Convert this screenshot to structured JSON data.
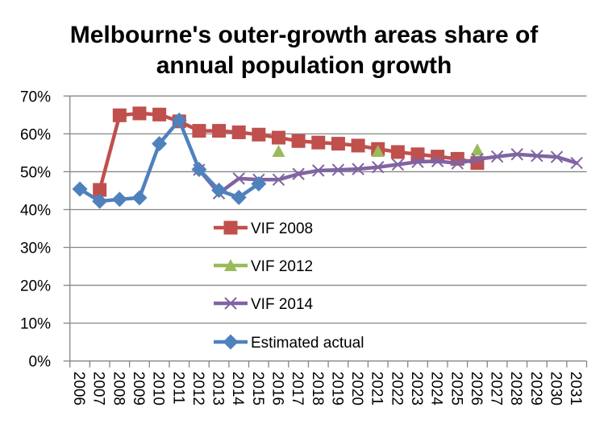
{
  "chart_data": {
    "type": "line",
    "title": "Melbourne's outer-growth areas share of annual population growth",
    "title_lines": [
      "Melbourne's outer-growth areas share of",
      "annual population growth"
    ],
    "xlabel": "",
    "ylabel": "",
    "categories": [
      "2006",
      "2007",
      "2008",
      "2009",
      "2010",
      "2011",
      "2012",
      "2013",
      "2014",
      "2015",
      "2016",
      "2017",
      "2018",
      "2019",
      "2020",
      "2021",
      "2022",
      "2023",
      "2024",
      "2025",
      "2026",
      "2027",
      "2028",
      "2029",
      "2030",
      "2031"
    ],
    "ylim": [
      0,
      70
    ],
    "yticks": [
      0,
      10,
      20,
      30,
      40,
      50,
      60,
      70
    ],
    "ytick_labels": [
      "0%",
      "10%",
      "20%",
      "30%",
      "40%",
      "50%",
      "60%",
      "70%"
    ],
    "grid": true,
    "legend_position": "center-left inside plot",
    "series": [
      {
        "name": "VIF 2008",
        "color": "#C0504D",
        "marker": "square",
        "connected": true,
        "values": [
          null,
          45.2,
          64.9,
          65.4,
          65.1,
          63.3,
          60.8,
          60.8,
          60.4,
          59.8,
          59.0,
          58.1,
          57.7,
          57.4,
          56.9,
          56.0,
          55.2,
          54.6,
          54.0,
          53.4,
          52.3,
          null,
          null,
          null,
          null,
          null
        ]
      },
      {
        "name": "VIF 2012",
        "color": "#9BBB59",
        "marker": "triangle",
        "connected": false,
        "values": [
          null,
          null,
          null,
          null,
          null,
          null,
          null,
          null,
          null,
          null,
          55.4,
          null,
          null,
          null,
          null,
          55.4,
          null,
          null,
          null,
          null,
          55.8,
          null,
          null,
          null,
          null,
          null
        ]
      },
      {
        "name": "VIF 2014",
        "color": "#8064A2",
        "marker": "x",
        "connected": true,
        "values": [
          null,
          null,
          null,
          null,
          null,
          null,
          50.5,
          44.3,
          48.2,
          47.9,
          47.9,
          49.4,
          50.3,
          50.5,
          50.7,
          51.2,
          51.9,
          52.6,
          52.8,
          52.2,
          53.3,
          54.0,
          54.6,
          54.2,
          53.9,
          52.3
        ]
      },
      {
        "name": "Estimated actual",
        "color": "#4F81BD",
        "marker": "diamond",
        "connected": true,
        "values": [
          45.4,
          42.2,
          42.7,
          43.1,
          57.4,
          63.6,
          50.6,
          45.1,
          43.2,
          46.8,
          null,
          null,
          null,
          null,
          null,
          null,
          null,
          null,
          null,
          null,
          null,
          null,
          null,
          null,
          null,
          null
        ]
      }
    ]
  }
}
